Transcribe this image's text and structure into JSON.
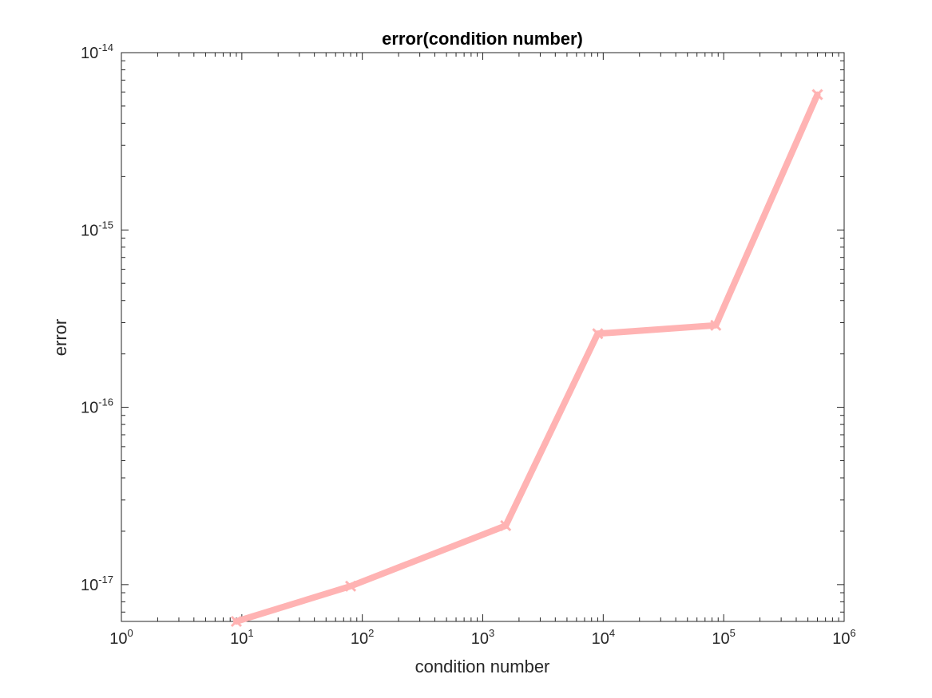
{
  "chart_data": {
    "type": "line",
    "title": "error(condition number)",
    "xlabel": "condition number",
    "ylabel": "error",
    "x_scale": "log",
    "y_scale": "log",
    "xlim": [
      1,
      1000000
    ],
    "ylim": [
      6.2e-18,
      1e-14
    ],
    "x_tick_labels": [
      {
        "base": "10",
        "exp": "0"
      },
      {
        "base": "10",
        "exp": "1"
      },
      {
        "base": "10",
        "exp": "2"
      },
      {
        "base": "10",
        "exp": "3"
      },
      {
        "base": "10",
        "exp": "4"
      },
      {
        "base": "10",
        "exp": "5"
      },
      {
        "base": "10",
        "exp": "6"
      }
    ],
    "y_tick_labels": [
      {
        "base": "10",
        "exp": "-17"
      },
      {
        "base": "10",
        "exp": "-16"
      },
      {
        "base": "10",
        "exp": "-15"
      },
      {
        "base": "10",
        "exp": "-14"
      }
    ],
    "grid": false,
    "box": true,
    "line_color": "#ffb3b3",
    "marker": "x",
    "series": [
      {
        "x": [
          9,
          80,
          1550,
          9000,
          86000,
          600000
        ],
        "y": [
          6.2e-18,
          9.8e-18,
          2.15e-17,
          2.6e-16,
          2.9e-16,
          5.8e-15
        ]
      }
    ]
  }
}
